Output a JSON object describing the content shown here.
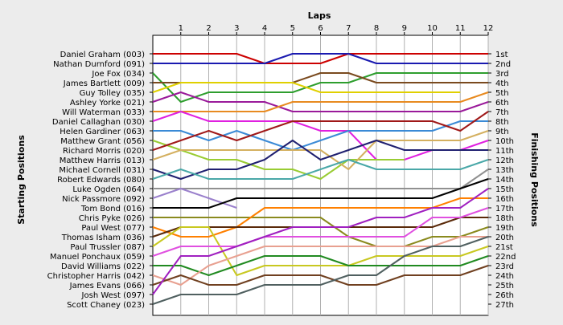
{
  "chart_data": {
    "type": "line",
    "title": "",
    "xlabel": "Laps",
    "ylabel_left": "Starting Positions",
    "ylabel_right": "Finishing Positions",
    "laps": [
      1,
      2,
      3,
      4,
      5,
      6,
      7,
      8,
      9,
      10,
      11,
      12
    ],
    "xlim": [
      0,
      12
    ],
    "ylim": [
      1,
      27
    ],
    "y_inverted": true,
    "grid": true,
    "legend": "none",
    "drivers": [
      "Daniel Graham (003)",
      "Nathan Durnford (091)",
      "Joe Fox (034)",
      "James Bartlett (009)",
      "Guy Tolley (035)",
      "Ashley Yorke (021)",
      "Will Waterman (033)",
      "Daniel Callaghan (030)",
      "Helen Gardiner (063)",
      "Matthew Grant (056)",
      "Richard Morris (020)",
      "Matthew Harris (013)",
      "Michael Cornell (031)",
      "Robert Edwards (080)",
      "Luke Ogden (064)",
      "Nick Passmore (092)",
      "Tom Bond (016)",
      "Chris Pyke (026)",
      "Paul West (077)",
      "Thomas Isham (036)",
      "Paul Trussler (087)",
      "Manuel Ponchaux (059)",
      "David Williams (022)",
      "Christopher Harris (042)",
      "James Evans (066)",
      "Josh West (097)",
      "Scott Chaney (023)"
    ],
    "finishing_positions": [
      "1st",
      "2nd",
      "3rd",
      "4th",
      "5th",
      "6th",
      "7th",
      "8th",
      "9th",
      "10th",
      "11th",
      "12th",
      "13th",
      "14th",
      "15th",
      "16th",
      "17th",
      "18th",
      "19th",
      "20th",
      "21st",
      "22nd",
      "23rd",
      "24th",
      "25th",
      "26th",
      "27th"
    ],
    "series": [
      {
        "color": "#cc0000",
        "values": [
          1,
          1,
          1,
          1,
          2,
          2,
          2,
          1,
          1,
          1,
          1,
          1,
          1
        ]
      },
      {
        "color": "#1a1ab0",
        "values": [
          2,
          2,
          2,
          2,
          2,
          1,
          1,
          1,
          2,
          2,
          2,
          2,
          2
        ]
      },
      {
        "color": "#2e9e2e",
        "values": [
          3,
          6,
          5,
          5,
          5,
          5,
          4,
          4,
          3,
          3,
          3,
          3,
          3
        ]
      },
      {
        "color": "#7a4a1e",
        "values": [
          4,
          4,
          4,
          4,
          4,
          4,
          3,
          3,
          4,
          4,
          4,
          4,
          4
        ]
      },
      {
        "color": "#e0d000",
        "values": [
          5,
          4,
          4,
          4,
          4,
          4,
          5,
          5,
          5,
          5,
          5,
          5,
          null
        ]
      },
      {
        "color": "#9a1a9a",
        "values": [
          6,
          5,
          6,
          6,
          6,
          7,
          7,
          7,
          7,
          7,
          7,
          7,
          6
        ]
      },
      {
        "color": "#e88a20",
        "values": [
          7,
          7,
          7,
          7,
          7,
          6,
          6,
          6,
          6,
          6,
          6,
          6,
          5
        ]
      },
      {
        "color": "#e020e0",
        "values": [
          8,
          7,
          8,
          8,
          8,
          8,
          9,
          9,
          12,
          12,
          11,
          11,
          10
        ]
      },
      {
        "color": "#3a8ad6",
        "values": [
          9,
          9,
          10,
          9,
          10,
          11,
          10,
          9,
          9,
          9,
          9,
          8,
          8
        ]
      },
      {
        "color": "#99cc33",
        "values": [
          10,
          11,
          12,
          12,
          13,
          13,
          14,
          12,
          12,
          12,
          null,
          null,
          null
        ]
      },
      {
        "color": "#a01818",
        "values": [
          11,
          10,
          9,
          10,
          9,
          8,
          8,
          8,
          8,
          8,
          8,
          9,
          7
        ]
      },
      {
        "color": "#d4b060",
        "values": [
          12,
          11,
          11,
          11,
          11,
          11,
          11,
          13,
          10,
          10,
          10,
          10,
          9
        ]
      },
      {
        "color": "#202070",
        "values": [
          13,
          14,
          13,
          13,
          12,
          10,
          12,
          11,
          10,
          11,
          11,
          11,
          11
        ]
      },
      {
        "color": "#4aa8a8",
        "values": [
          14,
          13,
          14,
          14,
          14,
          14,
          13,
          12,
          13,
          13,
          13,
          13,
          12
        ]
      },
      {
        "color": "#909090",
        "values": [
          15,
          15,
          15,
          15,
          15,
          15,
          15,
          15,
          15,
          15,
          15,
          15,
          13
        ]
      },
      {
        "color": "#9a80cc",
        "values": [
          16,
          15,
          16,
          17,
          null,
          null,
          null,
          null,
          null,
          null,
          null,
          null,
          null
        ]
      },
      {
        "color": "#000000",
        "values": [
          17,
          17,
          17,
          16,
          16,
          16,
          16,
          16,
          16,
          16,
          16,
          15,
          14
        ]
      },
      {
        "color": "#8a8a1e",
        "values": [
          18,
          18,
          18,
          18,
          18,
          18,
          18,
          20,
          21,
          21,
          20,
          20,
          19
        ]
      },
      {
        "color": "#ff8000",
        "values": [
          19,
          20,
          20,
          19,
          17,
          17,
          17,
          17,
          17,
          17,
          17,
          16,
          16
        ]
      },
      {
        "color": "#5a2a0a",
        "values": [
          20,
          19,
          19,
          19,
          19,
          19,
          19,
          19,
          19,
          19,
          19,
          18,
          18
        ]
      },
      {
        "color": "#c8c820",
        "values": [
          21,
          19,
          19,
          24,
          23,
          23,
          23,
          23,
          22,
          22,
          22,
          22,
          21
        ]
      },
      {
        "color": "#e050e0",
        "values": [
          22,
          21,
          21,
          21,
          20,
          20,
          20,
          20,
          20,
          20,
          18,
          18,
          17
        ]
      },
      {
        "color": "#208a20",
        "values": [
          23,
          23,
          24,
          23,
          22,
          22,
          22,
          23,
          23,
          23,
          23,
          23,
          22
        ]
      },
      {
        "color": "#e8a090",
        "values": [
          24,
          25,
          23,
          22,
          21,
          21,
          21,
          21,
          21,
          21,
          21,
          20,
          20
        ]
      },
      {
        "color": "#704020",
        "values": [
          25,
          24,
          25,
          25,
          24,
          24,
          24,
          25,
          25,
          24,
          24,
          24,
          23
        ]
      },
      {
        "color": "#a020c0",
        "values": [
          26,
          22,
          22,
          21,
          20,
          19,
          19,
          19,
          18,
          18,
          17,
          17,
          15
        ]
      },
      {
        "color": "#506060",
        "values": [
          27,
          26,
          26,
          26,
          25,
          25,
          25,
          24,
          24,
          22,
          21,
          21,
          20
        ]
      }
    ]
  }
}
